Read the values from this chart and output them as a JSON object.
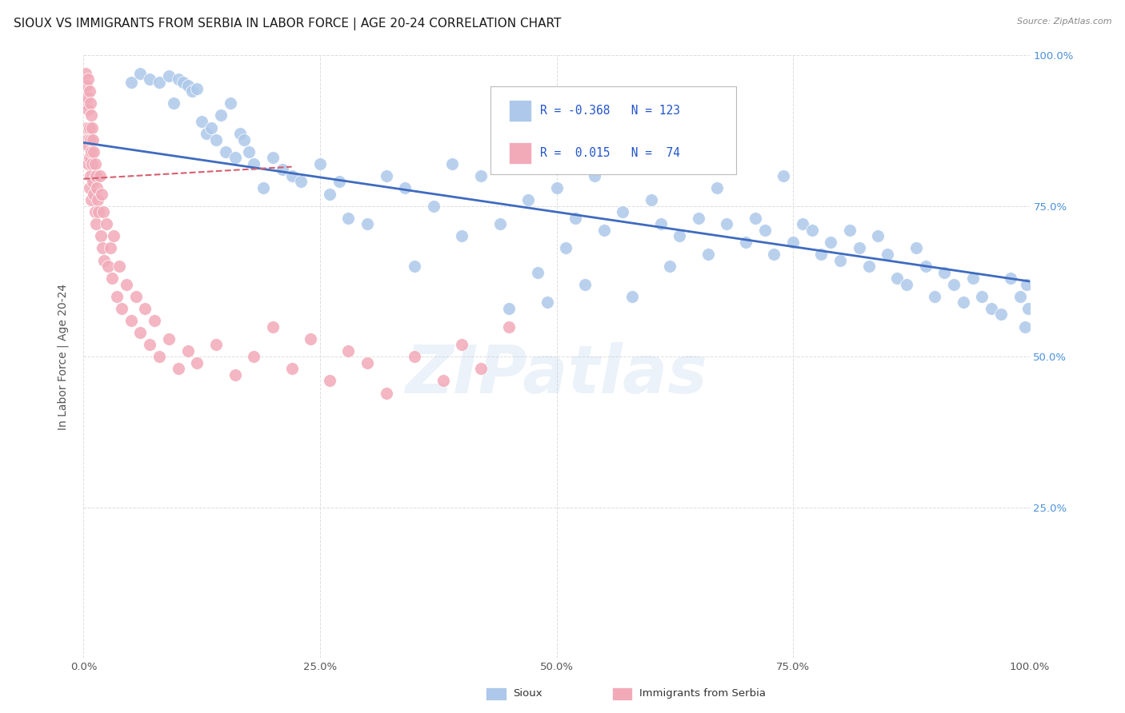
{
  "title": "SIOUX VS IMMIGRANTS FROM SERBIA IN LABOR FORCE | AGE 20-24 CORRELATION CHART",
  "source": "Source: ZipAtlas.com",
  "ylabel": "In Labor Force | Age 20-24",
  "xlim": [
    0,
    1.0
  ],
  "ylim": [
    0,
    1.0
  ],
  "blue_line_y0": 0.855,
  "blue_line_y1": 0.625,
  "pink_line_x0": 0.0,
  "pink_line_x1": 0.22,
  "pink_line_y0": 0.795,
  "pink_line_y1": 0.815,
  "blue_color": "#adc8ea",
  "pink_color": "#f2aab8",
  "blue_line_color": "#3f6bbf",
  "pink_line_color": "#d46070",
  "bg_color": "#ffffff",
  "grid_color": "#dddddd",
  "title_fontsize": 11,
  "axis_label_fontsize": 10,
  "tick_fontsize": 9.5,
  "right_tick_color": "#4a90d9",
  "legend_R1": "-0.368",
  "legend_N1": "123",
  "legend_R2": " 0.015",
  "legend_N2": " 74",
  "watermark_text": "ZIPatlas",
  "blue_scatter_x": [
    0.05,
    0.06,
    0.07,
    0.08,
    0.09,
    0.095,
    0.1,
    0.105,
    0.11,
    0.115,
    0.12,
    0.125,
    0.13,
    0.135,
    0.14,
    0.145,
    0.15,
    0.155,
    0.16,
    0.165,
    0.17,
    0.175,
    0.18,
    0.19,
    0.2,
    0.21,
    0.22,
    0.23,
    0.25,
    0.26,
    0.27,
    0.28,
    0.3,
    0.32,
    0.34,
    0.35,
    0.37,
    0.39,
    0.4,
    0.42,
    0.44,
    0.45,
    0.47,
    0.48,
    0.49,
    0.5,
    0.51,
    0.52,
    0.53,
    0.54,
    0.55,
    0.57,
    0.58,
    0.6,
    0.61,
    0.62,
    0.63,
    0.65,
    0.66,
    0.67,
    0.68,
    0.7,
    0.71,
    0.72,
    0.73,
    0.74,
    0.75,
    0.76,
    0.77,
    0.78,
    0.79,
    0.8,
    0.81,
    0.82,
    0.83,
    0.84,
    0.85,
    0.86,
    0.87,
    0.88,
    0.89,
    0.9,
    0.91,
    0.92,
    0.93,
    0.94,
    0.95,
    0.96,
    0.97,
    0.98,
    0.99,
    0.995,
    0.997,
    0.999
  ],
  "blue_scatter_y": [
    0.955,
    0.97,
    0.96,
    0.955,
    0.965,
    0.92,
    0.96,
    0.955,
    0.95,
    0.94,
    0.945,
    0.89,
    0.87,
    0.88,
    0.86,
    0.9,
    0.84,
    0.92,
    0.83,
    0.87,
    0.86,
    0.84,
    0.82,
    0.78,
    0.83,
    0.81,
    0.8,
    0.79,
    0.82,
    0.77,
    0.79,
    0.73,
    0.72,
    0.8,
    0.78,
    0.65,
    0.75,
    0.82,
    0.7,
    0.8,
    0.72,
    0.58,
    0.76,
    0.64,
    0.59,
    0.78,
    0.68,
    0.73,
    0.62,
    0.8,
    0.71,
    0.74,
    0.6,
    0.76,
    0.72,
    0.65,
    0.7,
    0.73,
    0.67,
    0.78,
    0.72,
    0.69,
    0.73,
    0.71,
    0.67,
    0.8,
    0.69,
    0.72,
    0.71,
    0.67,
    0.69,
    0.66,
    0.71,
    0.68,
    0.65,
    0.7,
    0.67,
    0.63,
    0.62,
    0.68,
    0.65,
    0.6,
    0.64,
    0.62,
    0.59,
    0.63,
    0.6,
    0.58,
    0.57,
    0.63,
    0.6,
    0.55,
    0.62,
    0.58
  ],
  "pink_scatter_x": [
    0.002,
    0.002,
    0.003,
    0.003,
    0.004,
    0.004,
    0.005,
    0.005,
    0.005,
    0.005,
    0.006,
    0.006,
    0.006,
    0.006,
    0.007,
    0.007,
    0.007,
    0.008,
    0.008,
    0.008,
    0.009,
    0.009,
    0.01,
    0.01,
    0.011,
    0.011,
    0.012,
    0.012,
    0.013,
    0.013,
    0.014,
    0.015,
    0.016,
    0.017,
    0.018,
    0.019,
    0.02,
    0.021,
    0.022,
    0.024,
    0.026,
    0.028,
    0.03,
    0.032,
    0.035,
    0.038,
    0.04,
    0.045,
    0.05,
    0.055,
    0.06,
    0.065,
    0.07,
    0.075,
    0.08,
    0.09,
    0.1,
    0.11,
    0.12,
    0.14,
    0.16,
    0.18,
    0.2,
    0.22,
    0.24,
    0.26,
    0.28,
    0.3,
    0.32,
    0.35,
    0.38,
    0.4,
    0.42,
    0.45
  ],
  "pink_scatter_y": [
    0.97,
    0.92,
    0.95,
    0.88,
    0.93,
    0.86,
    0.96,
    0.91,
    0.85,
    0.82,
    0.94,
    0.88,
    0.83,
    0.78,
    0.92,
    0.86,
    0.8,
    0.9,
    0.84,
    0.76,
    0.88,
    0.82,
    0.86,
    0.79,
    0.84,
    0.77,
    0.82,
    0.74,
    0.8,
    0.72,
    0.78,
    0.76,
    0.74,
    0.8,
    0.7,
    0.77,
    0.68,
    0.74,
    0.66,
    0.72,
    0.65,
    0.68,
    0.63,
    0.7,
    0.6,
    0.65,
    0.58,
    0.62,
    0.56,
    0.6,
    0.54,
    0.58,
    0.52,
    0.56,
    0.5,
    0.53,
    0.48,
    0.51,
    0.49,
    0.52,
    0.47,
    0.5,
    0.55,
    0.48,
    0.53,
    0.46,
    0.51,
    0.49,
    0.44,
    0.5,
    0.46,
    0.52,
    0.48,
    0.55
  ]
}
